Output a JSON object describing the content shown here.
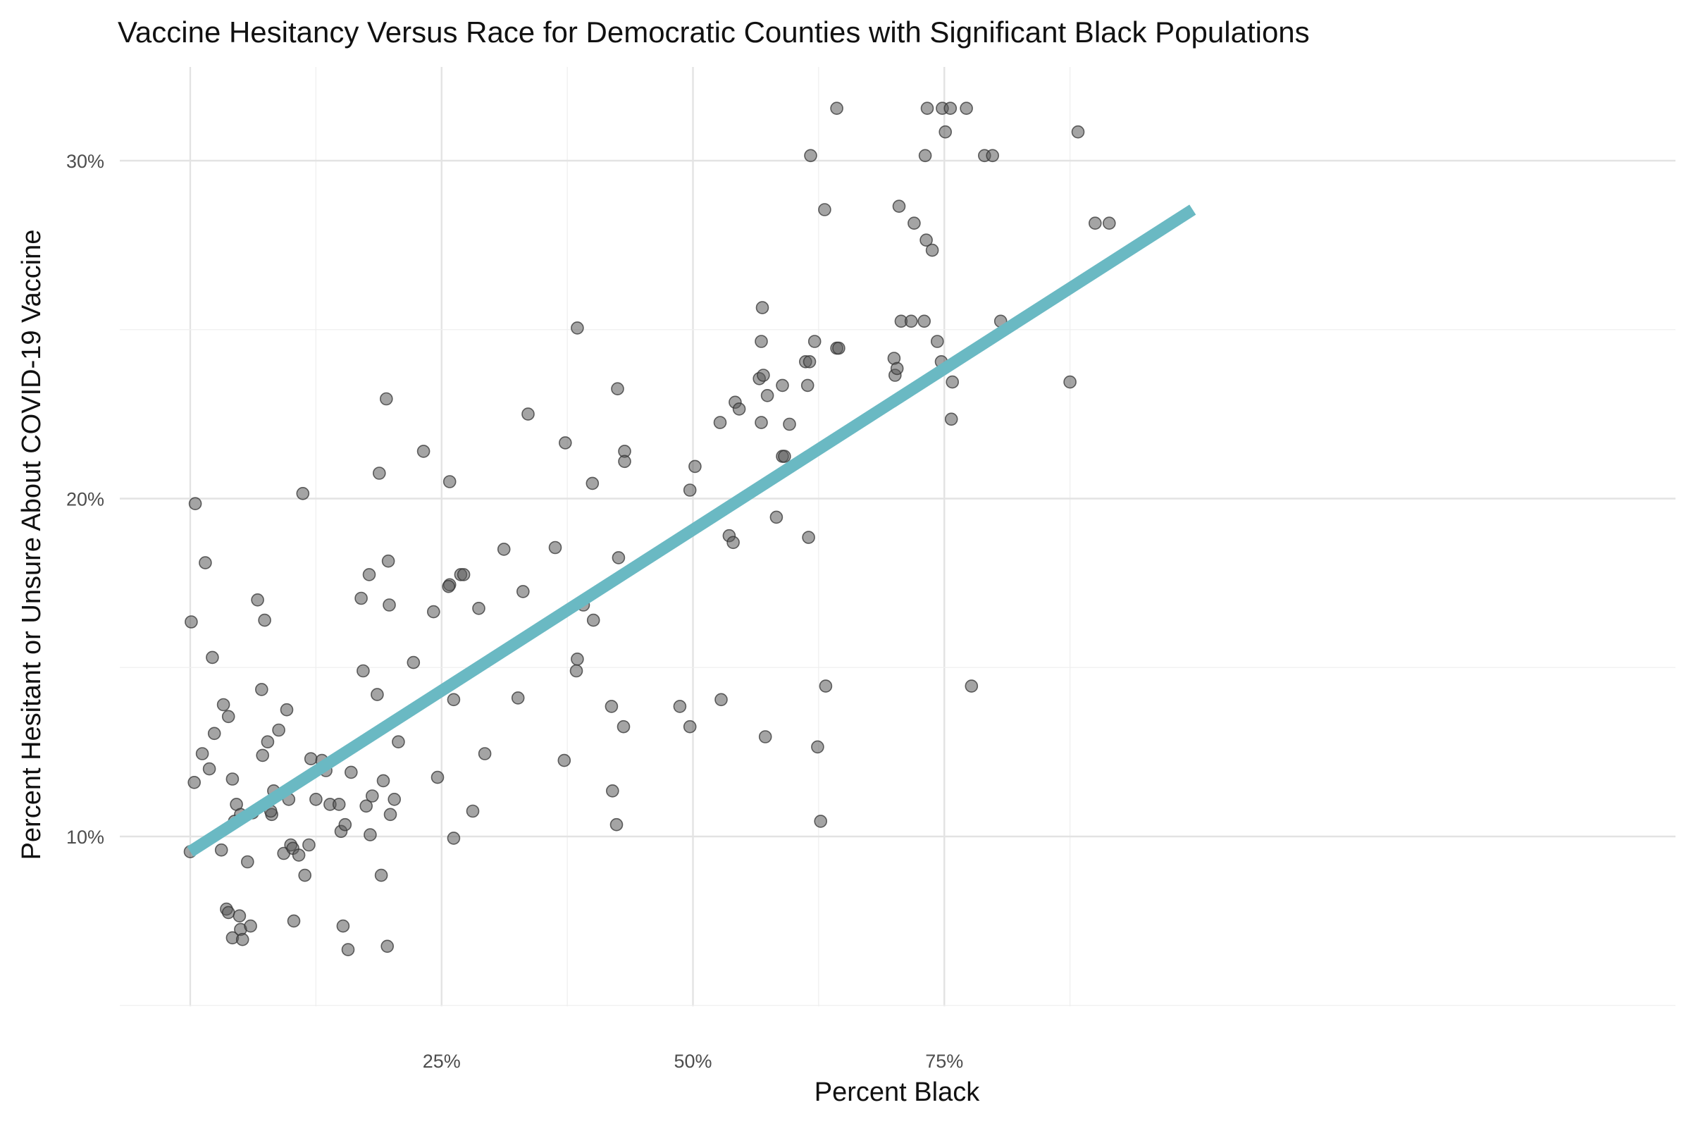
{
  "chart_data": {
    "type": "scatter",
    "title": "Vaccine Hesitancy Versus Race for Democratic Counties with Significant Black Populations",
    "xlabel": "Percent Black",
    "ylabel": "Percent Hesitant or Unsure About COVID-19 Vaccine",
    "xlim": [
      -0.05,
      0.915
    ],
    "ylim": [
      0.054,
      0.327
    ],
    "x_ticks": [
      {
        "value": 0.25,
        "label": "25%"
      },
      {
        "value": 0.5,
        "label": "50%"
      },
      {
        "value": 0.75,
        "label": "75%"
      }
    ],
    "y_ticks": [
      {
        "value": 0.1,
        "label": "10%"
      },
      {
        "value": 0.2,
        "label": "20%"
      },
      {
        "value": 0.3,
        "label": "30%"
      }
    ],
    "grid": true,
    "legend": "none",
    "point_color": "#5a5a5a",
    "trend_color": "#6ab9c3",
    "trend_line": {
      "x": [
        0.0,
        0.997
      ],
      "y": [
        0.0955,
        0.2855
      ]
    },
    "points": [
      [
        0.0,
        0.0955
      ],
      [
        0.001,
        0.1635
      ],
      [
        0.005,
        0.1985
      ],
      [
        0.004,
        0.116
      ],
      [
        0.012,
        0.1245
      ],
      [
        0.015,
        0.181
      ],
      [
        0.019,
        0.12
      ],
      [
        0.022,
        0.153
      ],
      [
        0.024,
        0.1305
      ],
      [
        0.033,
        0.139
      ],
      [
        0.038,
        0.1355
      ],
      [
        0.042,
        0.117
      ],
      [
        0.046,
        0.1095
      ],
      [
        0.044,
        0.1045
      ],
      [
        0.05,
        0.1065
      ],
      [
        0.031,
        0.096
      ],
      [
        0.036,
        0.0785
      ],
      [
        0.038,
        0.0775
      ],
      [
        0.049,
        0.0765
      ],
      [
        0.042,
        0.07
      ],
      [
        0.05,
        0.0725
      ],
      [
        0.052,
        0.0695
      ],
      [
        0.057,
        0.0925
      ],
      [
        0.06,
        0.0735
      ],
      [
        0.062,
        0.107
      ],
      [
        0.067,
        0.17
      ],
      [
        0.071,
        0.1435
      ],
      [
        0.072,
        0.124
      ],
      [
        0.074,
        0.164
      ],
      [
        0.077,
        0.128
      ],
      [
        0.081,
        0.1065
      ],
      [
        0.083,
        0.1135
      ],
      [
        0.08,
        0.1075
      ],
      [
        0.088,
        0.1315
      ],
      [
        0.093,
        0.095
      ],
      [
        0.096,
        0.1375
      ],
      [
        0.098,
        0.111
      ],
      [
        0.1,
        0.0975
      ],
      [
        0.103,
        0.075
      ],
      [
        0.102,
        0.0965
      ],
      [
        0.108,
        0.0945
      ],
      [
        0.112,
        0.2015
      ],
      [
        0.114,
        0.0885
      ],
      [
        0.118,
        0.0975
      ],
      [
        0.12,
        0.123
      ],
      [
        0.125,
        0.111
      ],
      [
        0.131,
        0.1225
      ],
      [
        0.135,
        0.1195
      ],
      [
        0.139,
        0.1095
      ],
      [
        0.148,
        0.1095
      ],
      [
        0.15,
        0.1015
      ],
      [
        0.152,
        0.0735
      ],
      [
        0.154,
        0.1035
      ],
      [
        0.157,
        0.0665
      ],
      [
        0.16,
        0.119
      ],
      [
        0.17,
        0.1705
      ],
      [
        0.172,
        0.149
      ],
      [
        0.175,
        0.109
      ],
      [
        0.178,
        0.1775
      ],
      [
        0.179,
        0.1005
      ],
      [
        0.181,
        0.112
      ],
      [
        0.186,
        0.142
      ],
      [
        0.188,
        0.2075
      ],
      [
        0.19,
        0.0885
      ],
      [
        0.192,
        0.1165
      ],
      [
        0.195,
        0.2295
      ],
      [
        0.196,
        0.0675
      ],
      [
        0.197,
        0.1815
      ],
      [
        0.198,
        0.1685
      ],
      [
        0.199,
        0.1065
      ],
      [
        0.203,
        0.111
      ],
      [
        0.207,
        0.128
      ],
      [
        0.222,
        0.1515
      ],
      [
        0.246,
        0.1175
      ],
      [
        0.232,
        0.214
      ],
      [
        0.242,
        0.1665
      ],
      [
        0.258,
        0.205
      ],
      [
        0.258,
        0.1745
      ],
      [
        0.257,
        0.174
      ],
      [
        0.262,
        0.0995
      ],
      [
        0.262,
        0.1405
      ],
      [
        0.269,
        0.1775
      ],
      [
        0.272,
        0.1775
      ],
      [
        0.281,
        0.1075
      ],
      [
        0.287,
        0.1675
      ],
      [
        0.293,
        0.1245
      ],
      [
        0.312,
        0.185
      ],
      [
        0.326,
        0.141
      ],
      [
        0.331,
        0.1725
      ],
      [
        0.336,
        0.225
      ],
      [
        0.363,
        0.1855
      ],
      [
        0.373,
        0.2165
      ],
      [
        0.372,
        0.1225
      ],
      [
        0.385,
        0.2505
      ],
      [
        0.384,
        0.149
      ],
      [
        0.385,
        0.1525
      ],
      [
        0.391,
        0.1685
      ],
      [
        0.4,
        0.2045
      ],
      [
        0.401,
        0.164
      ],
      [
        0.419,
        0.1385
      ],
      [
        0.425,
        0.2325
      ],
      [
        0.426,
        0.1825
      ],
      [
        0.431,
        0.1325
      ],
      [
        0.432,
        0.214
      ],
      [
        0.432,
        0.211
      ],
      [
        0.42,
        0.1135
      ],
      [
        0.424,
        0.1035
      ],
      [
        0.487,
        0.1385
      ],
      [
        0.497,
        0.1325
      ],
      [
        0.497,
        0.2025
      ],
      [
        0.502,
        0.2095
      ],
      [
        0.527,
        0.2225
      ],
      [
        0.536,
        0.189
      ],
      [
        0.54,
        0.187
      ],
      [
        0.542,
        0.2285
      ],
      [
        0.546,
        0.2265
      ],
      [
        0.528,
        0.1405
      ],
      [
        0.566,
        0.2355
      ],
      [
        0.568,
        0.2225
      ],
      [
        0.569,
        0.2565
      ],
      [
        0.568,
        0.2465
      ],
      [
        0.57,
        0.2365
      ],
      [
        0.574,
        0.2305
      ],
      [
        0.572,
        0.1295
      ],
      [
        0.583,
        0.1945
      ],
      [
        0.589,
        0.2335
      ],
      [
        0.589,
        0.2125
      ],
      [
        0.591,
        0.2125
      ],
      [
        0.596,
        0.222
      ],
      [
        0.612,
        0.2405
      ],
      [
        0.614,
        0.2335
      ],
      [
        0.615,
        0.1885
      ],
      [
        0.616,
        0.2405
      ],
      [
        0.617,
        0.3015
      ],
      [
        0.621,
        0.2465
      ],
      [
        0.624,
        0.1265
      ],
      [
        0.627,
        0.1045
      ],
      [
        0.631,
        0.2855
      ],
      [
        0.632,
        0.1445
      ],
      [
        0.643,
        0.2445
      ],
      [
        0.645,
        0.2445
      ],
      [
        0.643,
        0.3155
      ],
      [
        0.7,
        0.2415
      ],
      [
        0.701,
        0.2365
      ],
      [
        0.703,
        0.2385
      ],
      [
        0.705,
        0.2865
      ],
      [
        0.707,
        0.2525
      ],
      [
        0.717,
        0.2525
      ],
      [
        0.72,
        0.2815
      ],
      [
        0.73,
        0.2525
      ],
      [
        0.731,
        0.3015
      ],
      [
        0.732,
        0.2765
      ],
      [
        0.733,
        0.3155
      ],
      [
        0.738,
        0.2735
      ],
      [
        0.743,
        0.2465
      ],
      [
        0.747,
        0.2405
      ],
      [
        0.748,
        0.3155
      ],
      [
        0.751,
        0.3085
      ],
      [
        0.756,
        0.3155
      ],
      [
        0.757,
        0.2235
      ],
      [
        0.758,
        0.2345
      ],
      [
        0.772,
        0.3155
      ],
      [
        0.777,
        0.1445
      ],
      [
        0.79,
        0.3015
      ],
      [
        0.798,
        0.3015
      ],
      [
        0.806,
        0.2525
      ],
      [
        0.875,
        0.2345
      ],
      [
        0.883,
        0.3085
      ],
      [
        0.9,
        0.2815
      ],
      [
        0.914,
        0.2815
      ]
    ]
  }
}
